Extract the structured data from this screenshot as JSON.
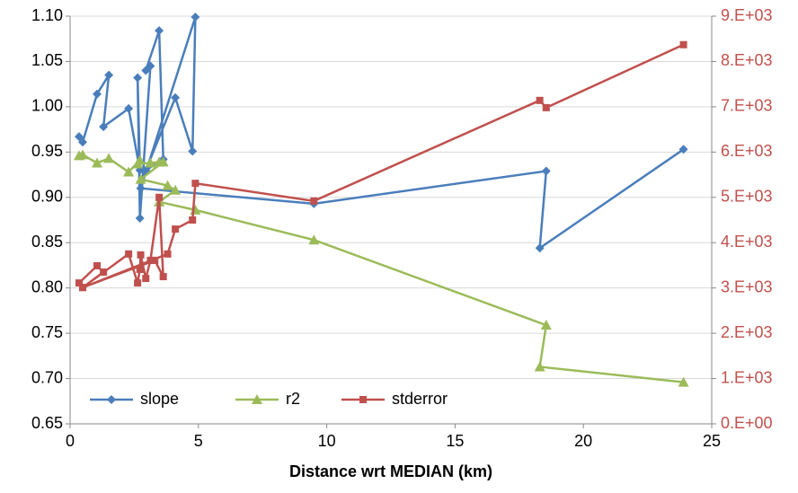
{
  "chart_data": {
    "type": "line",
    "xlabel": "Distance wrt MEDIAN (km)",
    "xlim": [
      0,
      25
    ],
    "xticks": [
      0,
      5,
      10,
      15,
      20,
      25
    ],
    "ylim": [
      0.65,
      1.1
    ],
    "yticks": [
      0.65,
      {
        "value": 0.7,
        "label": "0.70"
      },
      0.75,
      {
        "value": 0.8,
        "label": "0.80"
      },
      0.85,
      {
        "value": 0.9,
        "label": "0.90"
      },
      0.95,
      {
        "value": 1.0,
        "label": "1.00"
      },
      1.05,
      {
        "value": 1.1,
        "label": "1.10"
      }
    ],
    "y2lim": [
      0,
      9000
    ],
    "y2ticks": [
      {
        "value": 0,
        "label": "0.E+00"
      },
      {
        "value": 1000,
        "label": "1.E+03"
      },
      {
        "value": 2000,
        "label": "2.E+03"
      },
      {
        "value": 3000,
        "label": "3.E+03"
      },
      {
        "value": 4000,
        "label": "4.E+03"
      },
      {
        "value": 5000,
        "label": "5.E+03"
      },
      {
        "value": 6000,
        "label": "6.E+03"
      },
      {
        "value": 7000,
        "label": "7.E+03"
      },
      {
        "value": 8000,
        "label": "8.E+03"
      },
      {
        "value": 9000,
        "label": "9.E+03"
      }
    ],
    "grid": true,
    "legend": "lower left",
    "series": [
      {
        "name": "slope",
        "color": "#4a7ebb",
        "marker": "diamond",
        "x": [
          0.35,
          0.49,
          1.05,
          1.51,
          1.3,
          2.28,
          2.72,
          2.63,
          2.72,
          3.13,
          2.95,
          3.47,
          3.63,
          2.95,
          4.1,
          4.77,
          4.88,
          2.75,
          9.5,
          18.55,
          18.3,
          23.9
        ],
        "values": [
          0.967,
          0.961,
          1.014,
          1.035,
          0.978,
          0.998,
          0.93,
          1.032,
          0.877,
          1.045,
          1.04,
          1.084,
          0.942,
          0.93,
          1.01,
          0.951,
          1.099,
          0.91,
          0.893,
          0.929,
          0.844,
          0.953
        ]
      },
      {
        "name": "r2",
        "color": "#9bbb59",
        "marker": "triangle",
        "x": [
          0.35,
          0.49,
          1.05,
          1.51,
          2.28,
          2.72,
          2.63,
          3.13,
          3.47,
          3.63,
          2.75,
          3.8,
          4.1,
          3.47,
          4.88,
          9.5,
          18.55,
          18.3,
          23.9
        ],
        "values": [
          0.946,
          0.947,
          0.938,
          0.943,
          0.928,
          0.941,
          0.937,
          0.938,
          0.939,
          0.939,
          0.92,
          0.913,
          0.908,
          0.895,
          0.886,
          0.853,
          0.759,
          0.713,
          0.696
        ]
      },
      {
        "name": "stderror",
        "color": "#c0504d",
        "marker": "square",
        "axis": "y2",
        "x": [
          0.35,
          1.05,
          1.3,
          0.49,
          2.28,
          2.63,
          2.72,
          2.75,
          2.95,
          3.13,
          3.47,
          3.63,
          3.3,
          0.49,
          3.8,
          4.1,
          4.77,
          4.88,
          9.5,
          18.3,
          18.55,
          23.9
        ],
        "values": [
          3110,
          3490,
          3350,
          3010,
          3750,
          3110,
          3410,
          3730,
          3210,
          3610,
          5000,
          3250,
          3610,
          3010,
          3750,
          4300,
          4500,
          5310,
          4920,
          7140,
          6980,
          8370
        ]
      }
    ]
  }
}
